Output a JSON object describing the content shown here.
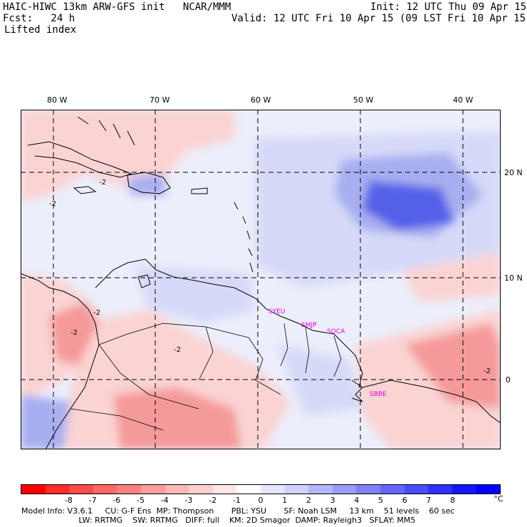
{
  "header": {
    "model_line": "HAIC-HIWC 13km ARW-GFS init   NCAR/MMM",
    "fcst_line": "Fcst:   24 h",
    "field_name": "Lifted index",
    "init_line": "Init: 12 UTC Thu 09 Apr 15",
    "valid_line": "Valid: 12 UTC Fri 10 Apr 15 (09 LST Fri 10 Apr 15)"
  },
  "map": {
    "lon_labels": [
      "80 W",
      "70 W",
      "60 W",
      "50 W",
      "40 W"
    ],
    "lat_labels": [
      "20 N",
      "10 N",
      "0"
    ],
    "contour_labels": [
      "-2",
      "-2",
      "-2",
      "-2",
      "-2",
      "-2"
    ],
    "stations": [
      "SYEU",
      "SMJP",
      "SOCA",
      "SBBE"
    ],
    "colors": {
      "strong_warm": "#e83a3a",
      "mid_warm": "#f59a9a",
      "light_warm": "#fbd3d3",
      "neutral": "#ffffff",
      "light_cool": "#d6daf8",
      "mid_cool": "#a8aff0",
      "strong_cool": "#5560e8",
      "station_text": "#dd00dd"
    }
  },
  "colorbar": {
    "ticks": [
      "-8",
      "-7",
      "-6",
      "-5",
      "-4",
      "-3",
      "-2",
      "-1",
      "0",
      "1",
      "2",
      "3",
      "4",
      "5",
      "6",
      "7",
      "8"
    ],
    "unit": "°C",
    "colors": [
      "#ff0000",
      "#ff2a2a",
      "#ff4a4a",
      "#ff6666",
      "#ff8080",
      "#ff9c9c",
      "#ffb6b6",
      "#ffcece",
      "#ffe6e6",
      "#ffffff",
      "#e6e6ff",
      "#cfd0ff",
      "#b4b6ff",
      "#9a9cff",
      "#7f80ff",
      "#6466ff",
      "#4a4cff",
      "#2e30ff",
      "#1416ff",
      "#0000ff"
    ]
  },
  "footer": {
    "line1": "Model Info: V3.6.1     CU: G-F Ens  MP: Thompson       PBL: YSU       SF: Noah LSM     13 km    51 levels    60 sec",
    "line2": "                       LW: RRTMG    SW: RRTMG   DIFF: full    KM: 2D Smagor  DAMP: Rayleigh3   SFLAY: MM5"
  }
}
